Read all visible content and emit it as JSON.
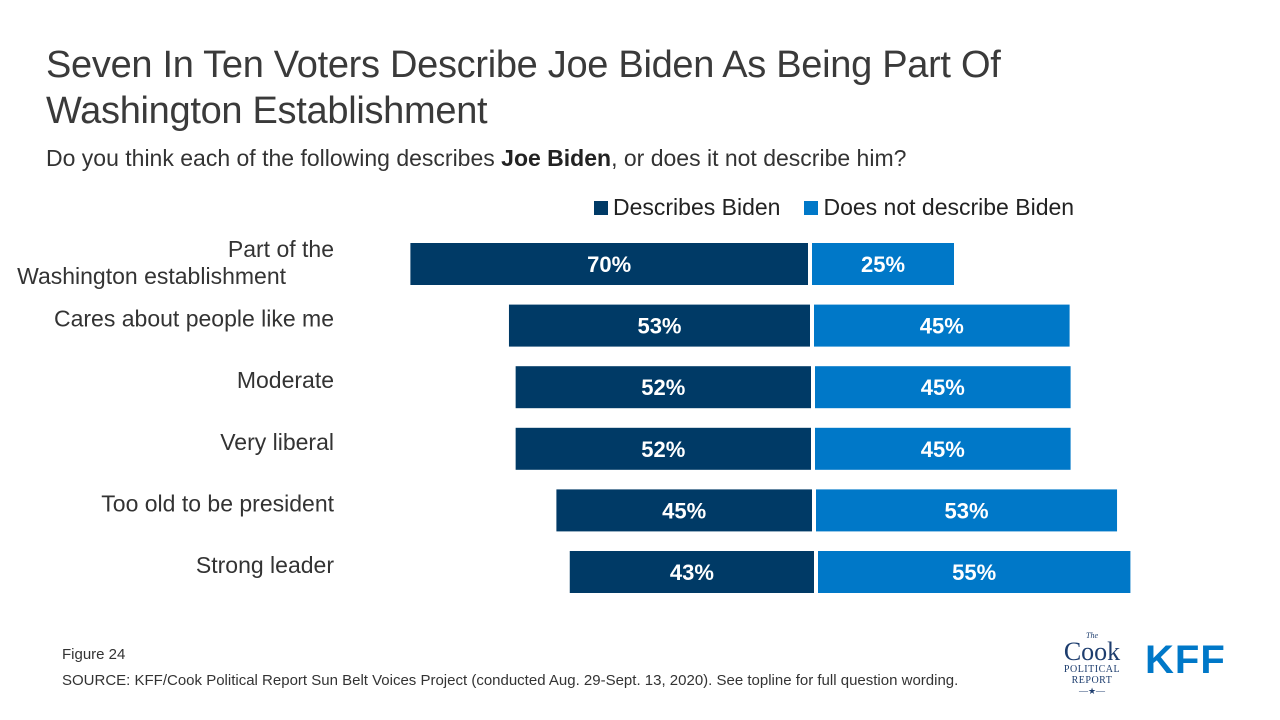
{
  "title": "Seven In Ten Voters Describe Joe Biden As Being Part Of Washington Establishment",
  "subtitle": {
    "before": "Do you think each of the following describes ",
    "bold": "Joe Biden",
    "after": ", or does it not describe him?"
  },
  "colors": {
    "describes": "#003a66",
    "does_not_describe": "#0078c8"
  },
  "chart_data": {
    "type": "bar",
    "orientation": "horizontal-diverging",
    "categories": [
      "Part of the Washington establishment",
      "Cares about people like me",
      "Moderate",
      "Very liberal",
      "Too old to be president",
      "Strong leader"
    ],
    "series": [
      {
        "name": "Describes Biden",
        "values": [
          70,
          53,
          52,
          52,
          45,
          43
        ],
        "labels": [
          "70%",
          "53%",
          "52%",
          "52%",
          "45%",
          "43%"
        ]
      },
      {
        "name": "Does not describe Biden",
        "values": [
          25,
          45,
          45,
          45,
          53,
          55
        ],
        "labels": [
          "25%",
          "45%",
          "45%",
          "45%",
          "53%",
          "55%"
        ]
      }
    ],
    "legend_position": "top-right",
    "grid": false
  },
  "footer": {
    "figure": "Figure 24",
    "source": "SOURCE: KFF/Cook Political Report Sun Belt Voices Project (conducted Aug. 29-Sept. 13, 2020). See topline for full question wording."
  },
  "logos": {
    "cook_the": "The",
    "cook_word": "Cook",
    "cook_line1": "POLITICAL",
    "cook_line2": "REPORT",
    "kff": "KFF"
  }
}
